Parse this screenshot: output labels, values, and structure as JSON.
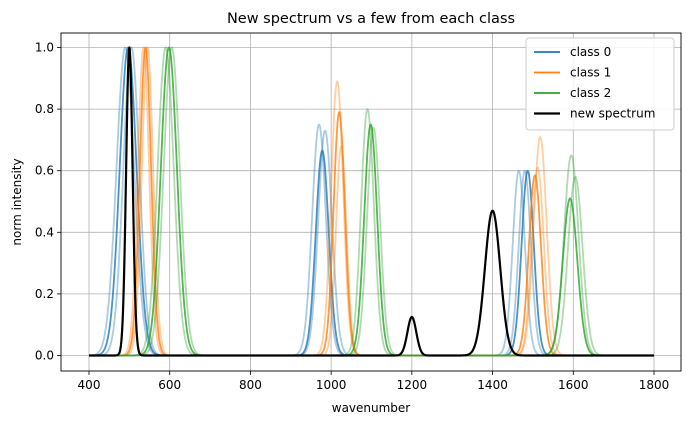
{
  "chart_data": {
    "type": "line",
    "title": "New spectrum vs a few from each class",
    "xlabel": "wavenumber",
    "ylabel": "norm intensity",
    "xlim": [
      400,
      1800
    ],
    "ylim": [
      0,
      1.0
    ],
    "xticks": [
      400,
      600,
      800,
      1000,
      1200,
      1400,
      1600,
      1800
    ],
    "yticks": [
      0.0,
      0.2,
      0.4,
      0.6,
      0.8,
      1.0
    ],
    "xtick_labels": [
      "400",
      "600",
      "800",
      "1000",
      "1200",
      "1400",
      "1600",
      "1800"
    ],
    "ytick_labels": [
      "0.0",
      "0.2",
      "0.4",
      "0.6",
      "0.8",
      "1.0"
    ],
    "grid": true,
    "legend_position": "top-right",
    "legend": [
      "class 0",
      "class 1",
      "class 2",
      "new spectrum"
    ],
    "series": [
      {
        "name": "class 0",
        "color": "#1f77b4",
        "opacity": 0.38,
        "width": 1.8,
        "peaks": [
          {
            "center": 490,
            "height": 1.0,
            "sigma": 22
          },
          {
            "center": 970,
            "height": 0.75,
            "sigma": 17
          },
          {
            "center": 1465,
            "height": 0.6,
            "sigma": 15
          }
        ]
      },
      {
        "name": "",
        "color": "#1f77b4",
        "opacity": 0.38,
        "width": 1.8,
        "peaks": [
          {
            "center": 505,
            "height": 1.0,
            "sigma": 20
          },
          {
            "center": 985,
            "height": 0.73,
            "sigma": 17
          },
          {
            "center": 1480,
            "height": 0.6,
            "sigma": 15
          }
        ]
      },
      {
        "name": "",
        "color": "#1f77b4",
        "opacity": 0.8,
        "width": 1.8,
        "peaks": [
          {
            "center": 497,
            "height": 1.0,
            "sigma": 21
          },
          {
            "center": 978,
            "height": 0.665,
            "sigma": 16
          },
          {
            "center": 1487,
            "height": 0.6,
            "sigma": 15
          }
        ]
      },
      {
        "name": "class 1",
        "color": "#ff7f0e",
        "opacity": 0.38,
        "width": 1.8,
        "peaks": [
          {
            "center": 535,
            "height": 1.0,
            "sigma": 14
          },
          {
            "center": 1015,
            "height": 0.89,
            "sigma": 15
          },
          {
            "center": 1518,
            "height": 0.71,
            "sigma": 16
          }
        ]
      },
      {
        "name": "",
        "color": "#ff7f0e",
        "opacity": 0.38,
        "width": 1.8,
        "peaks": [
          {
            "center": 545,
            "height": 1.0,
            "sigma": 14
          },
          {
            "center": 1025,
            "height": 0.68,
            "sigma": 13
          },
          {
            "center": 1512,
            "height": 0.61,
            "sigma": 15
          }
        ]
      },
      {
        "name": "",
        "color": "#ff7f0e",
        "opacity": 0.8,
        "width": 1.8,
        "peaks": [
          {
            "center": 540,
            "height": 1.0,
            "sigma": 14
          },
          {
            "center": 1020,
            "height": 0.79,
            "sigma": 14
          },
          {
            "center": 1505,
            "height": 0.585,
            "sigma": 15
          }
        ]
      },
      {
        "name": "class 2",
        "color": "#2ca02c",
        "opacity": 0.38,
        "width": 1.8,
        "peaks": [
          {
            "center": 590,
            "height": 1.0,
            "sigma": 20
          },
          {
            "center": 1090,
            "height": 0.8,
            "sigma": 16
          },
          {
            "center": 1595,
            "height": 0.65,
            "sigma": 18
          }
        ]
      },
      {
        "name": "",
        "color": "#2ca02c",
        "opacity": 0.38,
        "width": 1.8,
        "peaks": [
          {
            "center": 605,
            "height": 1.0,
            "sigma": 20
          },
          {
            "center": 1105,
            "height": 0.74,
            "sigma": 16
          },
          {
            "center": 1605,
            "height": 0.58,
            "sigma": 18
          }
        ]
      },
      {
        "name": "",
        "color": "#2ca02c",
        "opacity": 0.8,
        "width": 1.8,
        "peaks": [
          {
            "center": 598,
            "height": 1.0,
            "sigma": 20
          },
          {
            "center": 1098,
            "height": 0.75,
            "sigma": 16
          },
          {
            "center": 1592,
            "height": 0.51,
            "sigma": 18
          }
        ]
      },
      {
        "name": "new spectrum",
        "color": "#000000",
        "opacity": 1.0,
        "width": 2.2,
        "peaks": [
          {
            "center": 500,
            "height": 1.0,
            "sigma": 8
          },
          {
            "center": 1200,
            "height": 0.125,
            "sigma": 11
          },
          {
            "center": 1400,
            "height": 0.47,
            "sigma": 19
          }
        ]
      }
    ]
  }
}
